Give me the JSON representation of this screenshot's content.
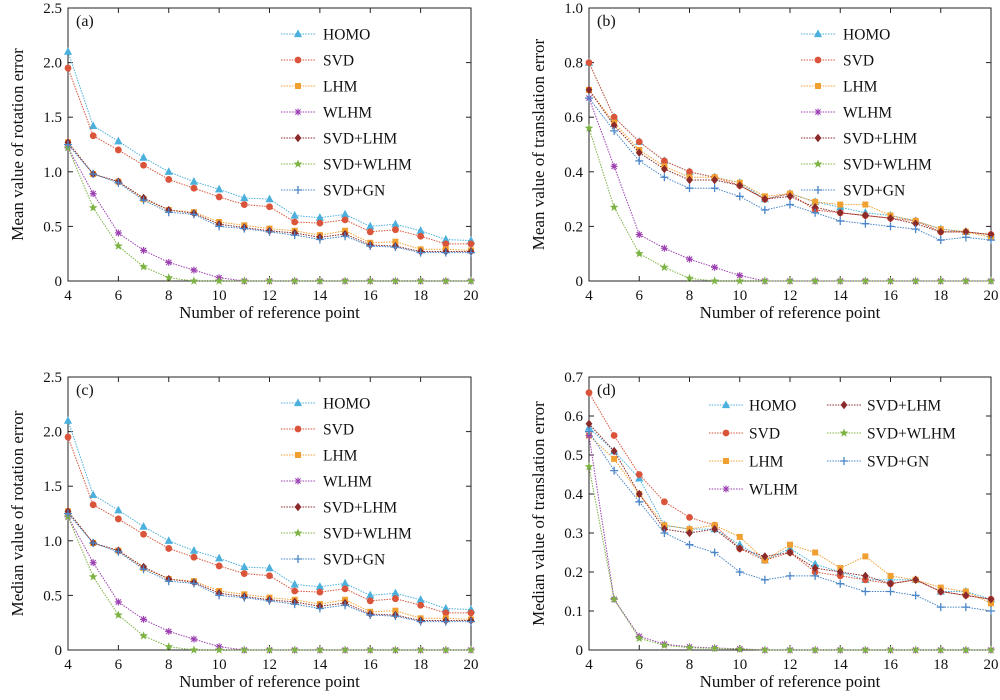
{
  "figure": {
    "panel_count": 4
  },
  "chart_data": [
    {
      "type": "line",
      "panel_label": "(a)",
      "xlabel": "Number of reference point",
      "ylabel": "Mean value of rotation error",
      "xlim": [
        4,
        20
      ],
      "ylim": [
        0,
        2.5
      ],
      "xticks": [
        4,
        6,
        8,
        10,
        12,
        14,
        16,
        18,
        20
      ],
      "yticks": [
        0,
        0.5,
        1.0,
        1.5,
        2.0,
        2.5
      ],
      "ytick_labels": [
        "0",
        "0.5",
        "1.0",
        "1.5",
        "2.0",
        "2.5"
      ],
      "legend_position": "top-right",
      "legend_columns": 1,
      "x": [
        4,
        5,
        6,
        7,
        8,
        9,
        10,
        11,
        12,
        13,
        14,
        15,
        16,
        17,
        18,
        19,
        20
      ],
      "series": [
        {
          "name": "HOMO",
          "color": "#4bb0dc",
          "marker": "triangle",
          "values": [
            2.1,
            1.42,
            1.28,
            1.13,
            1.0,
            0.91,
            0.84,
            0.76,
            0.75,
            0.6,
            0.58,
            0.61,
            0.5,
            0.52,
            0.46,
            0.38,
            0.37
          ]
        },
        {
          "name": "SVD",
          "color": "#d9543a",
          "marker": "circle",
          "values": [
            1.95,
            1.33,
            1.2,
            1.06,
            0.93,
            0.85,
            0.77,
            0.7,
            0.68,
            0.54,
            0.53,
            0.56,
            0.45,
            0.47,
            0.41,
            0.34,
            0.34
          ]
        },
        {
          "name": "LHM",
          "color": "#f0a030",
          "marker": "square",
          "values": [
            1.27,
            0.98,
            0.91,
            0.75,
            0.65,
            0.63,
            0.54,
            0.51,
            0.48,
            0.46,
            0.42,
            0.46,
            0.35,
            0.36,
            0.29,
            0.29,
            0.28
          ]
        },
        {
          "name": "WLHM",
          "color": "#9b3fb0",
          "marker": "asterisk",
          "values": [
            1.22,
            0.8,
            0.44,
            0.28,
            0.17,
            0.1,
            0.03,
            0.0,
            0.0,
            0.0,
            0.0,
            0.0,
            0.0,
            0.0,
            0.0,
            0.0,
            0.0
          ]
        },
        {
          "name": "SVD+LHM",
          "color": "#8b2a2a",
          "marker": "diamond",
          "values": [
            1.27,
            0.98,
            0.91,
            0.76,
            0.65,
            0.62,
            0.52,
            0.49,
            0.46,
            0.44,
            0.4,
            0.43,
            0.33,
            0.32,
            0.27,
            0.27,
            0.27
          ]
        },
        {
          "name": "SVD+WLHM",
          "color": "#7cb342",
          "marker": "star",
          "values": [
            1.22,
            0.67,
            0.32,
            0.13,
            0.03,
            0.0,
            0.0,
            0.0,
            0.0,
            0.0,
            0.0,
            0.0,
            0.0,
            0.0,
            0.0,
            0.0,
            0.0
          ]
        },
        {
          "name": "SVD+GN",
          "color": "#4a86c8",
          "marker": "plus",
          "values": [
            1.25,
            0.98,
            0.9,
            0.74,
            0.63,
            0.61,
            0.5,
            0.48,
            0.45,
            0.42,
            0.38,
            0.41,
            0.32,
            0.31,
            0.26,
            0.26,
            0.26
          ]
        }
      ]
    },
    {
      "type": "line",
      "panel_label": "(b)",
      "xlabel": "Number of reference point",
      "ylabel": "Mean value of translation error",
      "xlim": [
        4,
        20
      ],
      "ylim": [
        0,
        1.0
      ],
      "xticks": [
        4,
        6,
        8,
        10,
        12,
        14,
        16,
        18,
        20
      ],
      "yticks": [
        0,
        0.2,
        0.4,
        0.6,
        0.8,
        1.0
      ],
      "ytick_labels": [
        "0",
        "0.2",
        "0.4",
        "0.6",
        "0.8",
        "1.0"
      ],
      "legend_position": "top-right",
      "legend_columns": 1,
      "x": [
        4,
        5,
        6,
        7,
        8,
        9,
        10,
        11,
        12,
        13,
        14,
        15,
        16,
        17,
        18,
        19,
        20
      ],
      "series": [
        {
          "name": "HOMO",
          "color": "#4bb0dc",
          "marker": "triangle",
          "values": [
            0.8,
            0.6,
            0.51,
            0.44,
            0.4,
            0.38,
            0.36,
            0.3,
            0.32,
            0.29,
            0.27,
            0.25,
            0.24,
            0.22,
            0.19,
            0.18,
            0.17
          ]
        },
        {
          "name": "SVD",
          "color": "#d9543a",
          "marker": "circle",
          "values": [
            0.8,
            0.6,
            0.51,
            0.44,
            0.4,
            0.38,
            0.35,
            0.3,
            0.32,
            0.26,
            0.25,
            0.24,
            0.23,
            0.22,
            0.18,
            0.18,
            0.17
          ]
        },
        {
          "name": "LHM",
          "color": "#f0a030",
          "marker": "square",
          "values": [
            0.7,
            0.58,
            0.48,
            0.42,
            0.38,
            0.38,
            0.36,
            0.31,
            0.32,
            0.29,
            0.28,
            0.28,
            0.24,
            0.22,
            0.19,
            0.18,
            0.16
          ]
        },
        {
          "name": "WLHM",
          "color": "#9b3fb0",
          "marker": "asterisk",
          "values": [
            0.67,
            0.42,
            0.17,
            0.12,
            0.08,
            0.05,
            0.02,
            0.0,
            0.0,
            0.0,
            0.0,
            0.0,
            0.0,
            0.0,
            0.0,
            0.0,
            0.0
          ]
        },
        {
          "name": "SVD+LHM",
          "color": "#8b2a2a",
          "marker": "diamond",
          "values": [
            0.7,
            0.57,
            0.47,
            0.41,
            0.37,
            0.37,
            0.35,
            0.3,
            0.31,
            0.27,
            0.25,
            0.24,
            0.23,
            0.21,
            0.18,
            0.18,
            0.17
          ]
        },
        {
          "name": "SVD+WLHM",
          "color": "#7cb342",
          "marker": "star",
          "values": [
            0.56,
            0.27,
            0.1,
            0.05,
            0.01,
            0.0,
            0.0,
            0.0,
            0.0,
            0.0,
            0.0,
            0.0,
            0.0,
            0.0,
            0.0,
            0.0,
            0.0
          ]
        },
        {
          "name": "SVD+GN",
          "color": "#4a86c8",
          "marker": "plus",
          "values": [
            0.67,
            0.55,
            0.44,
            0.38,
            0.34,
            0.34,
            0.31,
            0.26,
            0.28,
            0.25,
            0.22,
            0.21,
            0.2,
            0.19,
            0.15,
            0.16,
            0.15
          ]
        }
      ]
    },
    {
      "type": "line",
      "panel_label": "(c)",
      "xlabel": "Number of reference point",
      "ylabel": "Median value of rotation error",
      "xlim": [
        4,
        20
      ],
      "ylim": [
        0,
        2.5
      ],
      "xticks": [
        4,
        6,
        8,
        10,
        12,
        14,
        16,
        18,
        20
      ],
      "yticks": [
        0,
        0.5,
        1.0,
        1.5,
        2.0,
        2.5
      ],
      "ytick_labels": [
        "0",
        "0.5",
        "1.0",
        "1.5",
        "2.0",
        "2.5"
      ],
      "legend_position": "top-right",
      "legend_columns": 1,
      "x": [
        4,
        5,
        6,
        7,
        8,
        9,
        10,
        11,
        12,
        13,
        14,
        15,
        16,
        17,
        18,
        19,
        20
      ],
      "series": [
        {
          "name": "HOMO",
          "color": "#4bb0dc",
          "marker": "triangle",
          "values": [
            2.1,
            1.42,
            1.28,
            1.13,
            1.0,
            0.91,
            0.84,
            0.76,
            0.75,
            0.6,
            0.58,
            0.61,
            0.5,
            0.52,
            0.46,
            0.38,
            0.37
          ]
        },
        {
          "name": "SVD",
          "color": "#d9543a",
          "marker": "circle",
          "values": [
            1.95,
            1.33,
            1.2,
            1.06,
            0.93,
            0.85,
            0.77,
            0.7,
            0.68,
            0.54,
            0.53,
            0.56,
            0.45,
            0.47,
            0.41,
            0.34,
            0.34
          ]
        },
        {
          "name": "LHM",
          "color": "#f0a030",
          "marker": "square",
          "values": [
            1.27,
            0.98,
            0.91,
            0.75,
            0.65,
            0.63,
            0.54,
            0.51,
            0.48,
            0.46,
            0.42,
            0.46,
            0.35,
            0.36,
            0.29,
            0.29,
            0.28
          ]
        },
        {
          "name": "WLHM",
          "color": "#9b3fb0",
          "marker": "asterisk",
          "values": [
            1.22,
            0.8,
            0.44,
            0.28,
            0.17,
            0.1,
            0.03,
            0.0,
            0.0,
            0.0,
            0.0,
            0.0,
            0.0,
            0.0,
            0.0,
            0.0,
            0.0
          ]
        },
        {
          "name": "SVD+LHM",
          "color": "#8b2a2a",
          "marker": "diamond",
          "values": [
            1.27,
            0.98,
            0.91,
            0.76,
            0.65,
            0.62,
            0.52,
            0.49,
            0.46,
            0.44,
            0.4,
            0.43,
            0.33,
            0.32,
            0.27,
            0.27,
            0.27
          ]
        },
        {
          "name": "SVD+WLHM",
          "color": "#7cb342",
          "marker": "star",
          "values": [
            1.22,
            0.67,
            0.32,
            0.13,
            0.03,
            0.0,
            0.0,
            0.0,
            0.0,
            0.0,
            0.0,
            0.0,
            0.0,
            0.0,
            0.0,
            0.0,
            0.0
          ]
        },
        {
          "name": "SVD+GN",
          "color": "#4a86c8",
          "marker": "plus",
          "values": [
            1.25,
            0.98,
            0.9,
            0.74,
            0.63,
            0.61,
            0.5,
            0.48,
            0.45,
            0.42,
            0.38,
            0.41,
            0.32,
            0.31,
            0.26,
            0.26,
            0.26
          ]
        }
      ]
    },
    {
      "type": "line",
      "panel_label": "(d)",
      "xlabel": "Number of reference point",
      "ylabel": "Median value of translation error",
      "xlim": [
        4,
        20
      ],
      "ylim": [
        0,
        0.7
      ],
      "xticks": [
        4,
        6,
        8,
        10,
        12,
        14,
        16,
        18,
        20
      ],
      "yticks": [
        0,
        0.1,
        0.2,
        0.3,
        0.4,
        0.5,
        0.6,
        0.7
      ],
      "ytick_labels": [
        "0",
        "0.1",
        "0.2",
        "0.3",
        "0.4",
        "0.5",
        "0.6",
        "0.7"
      ],
      "legend_position": "top-right",
      "legend_columns": 2,
      "x": [
        4,
        5,
        6,
        7,
        8,
        9,
        10,
        11,
        12,
        13,
        14,
        15,
        16,
        17,
        18,
        19,
        20
      ],
      "series": [
        {
          "name": "HOMO",
          "color": "#4bb0dc",
          "marker": "triangle",
          "values": [
            0.57,
            0.51,
            0.44,
            0.32,
            0.31,
            0.31,
            0.27,
            0.23,
            0.26,
            0.22,
            0.2,
            0.18,
            0.18,
            0.18,
            0.15,
            0.15,
            0.13
          ]
        },
        {
          "name": "SVD",
          "color": "#d9543a",
          "marker": "circle",
          "values": [
            0.66,
            0.55,
            0.45,
            0.38,
            0.34,
            0.32,
            0.26,
            0.23,
            0.25,
            0.2,
            0.19,
            0.18,
            0.17,
            0.18,
            0.15,
            0.14,
            0.13
          ]
        },
        {
          "name": "LHM",
          "color": "#f0a030",
          "marker": "square",
          "values": [
            0.55,
            0.49,
            0.4,
            0.32,
            0.31,
            0.32,
            0.29,
            0.23,
            0.27,
            0.25,
            0.21,
            0.24,
            0.19,
            0.18,
            0.16,
            0.15,
            0.12
          ]
        },
        {
          "name": "WLHM",
          "color": "#9b3fb0",
          "marker": "asterisk",
          "values": [
            0.55,
            0.13,
            0.035,
            0.015,
            0.008,
            0.005,
            0.003,
            0.0,
            0.0,
            0.0,
            0.0,
            0.0,
            0.0,
            0.0,
            0.0,
            0.0,
            0.0
          ]
        },
        {
          "name": "SVD+LHM",
          "color": "#8b2a2a",
          "marker": "diamond",
          "values": [
            0.58,
            0.51,
            0.4,
            0.31,
            0.3,
            0.31,
            0.26,
            0.24,
            0.25,
            0.21,
            0.2,
            0.19,
            0.17,
            0.18,
            0.15,
            0.14,
            0.13
          ]
        },
        {
          "name": "SVD+WLHM",
          "color": "#7cb342",
          "marker": "star",
          "values": [
            0.47,
            0.13,
            0.03,
            0.012,
            0.006,
            0.004,
            0.002,
            0.0,
            0.0,
            0.0,
            0.0,
            0.0,
            0.0,
            0.0,
            0.0,
            0.0,
            0.0
          ]
        },
        {
          "name": "SVD+GN",
          "color": "#4a86c8",
          "marker": "plus",
          "values": [
            0.56,
            0.46,
            0.38,
            0.3,
            0.27,
            0.25,
            0.2,
            0.18,
            0.19,
            0.19,
            0.17,
            0.15,
            0.15,
            0.14,
            0.11,
            0.11,
            0.1
          ]
        }
      ]
    }
  ]
}
